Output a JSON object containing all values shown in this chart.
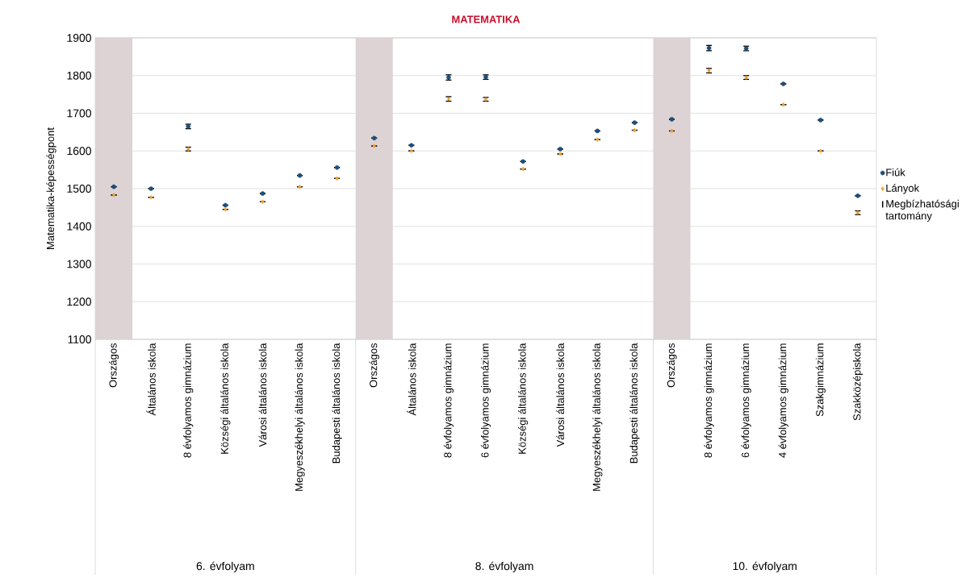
{
  "chart_data": {
    "type": "scatter",
    "title": "MATEMATIKA",
    "ylabel": "Matematika-képességpont",
    "categories": [
      "Országos",
      "Általános iskola",
      "8 évfolyamos gimnázium",
      "Községi általános iskola",
      "Városi általános iskola",
      "Megyeszékhelyi általános iskola",
      "Budapesti általános iskola",
      "Országos",
      "Általános iskola",
      "8 évfolyamos gimnázium",
      "6 évfolyamos gimnázium",
      "Községi általános iskola",
      "Városi általános iskola",
      "Megyeszékhelyi általános iskola",
      "Budapesti általános iskola",
      "Országos",
      "8 évfolyamos gimnázium",
      "6 évfolyamos gimnázium",
      "4 évfolyamos gimnázium",
      "Szakgimnázium",
      "Szakközépiskola"
    ],
    "series": [
      {
        "name": "Fiúk",
        "color": "#1f4e79",
        "marker": "circle",
        "values": [
          1505,
          1500,
          1665,
          1456,
          1487,
          1535,
          1556,
          1634,
          1615,
          1795,
          1796,
          1572,
          1605,
          1653,
          1675,
          1684,
          1873,
          1872,
          1778,
          1682,
          1481
        ],
        "errors": [
          null,
          null,
          6,
          null,
          null,
          null,
          null,
          null,
          null,
          7,
          6,
          null,
          null,
          null,
          null,
          null,
          7,
          6,
          null,
          null,
          null
        ]
      },
      {
        "name": "Lányok",
        "color": "#f0a030",
        "marker": "diamond",
        "values": [
          1483,
          1477,
          1605,
          1445,
          1465,
          1505,
          1527,
          1613,
          1600,
          1738,
          1737,
          1552,
          1592,
          1630,
          1655,
          1653,
          1813,
          1795,
          1723,
          1600,
          1436
        ],
        "errors": [
          null,
          null,
          5,
          null,
          null,
          null,
          null,
          null,
          null,
          6,
          5,
          null,
          null,
          null,
          null,
          null,
          6,
          5,
          null,
          null,
          5
        ]
      }
    ],
    "ylim": [
      1100,
      1900
    ],
    "yticks": [
      1100,
      1200,
      1300,
      1400,
      1500,
      1600,
      1700,
      1800,
      1900
    ],
    "grid": "y",
    "legend": "right",
    "annotations": [
      "6. évfolyam",
      "8. évfolyam",
      "10. évfolyam",
      "Megbízhatósági tartomány"
    ]
  }
}
